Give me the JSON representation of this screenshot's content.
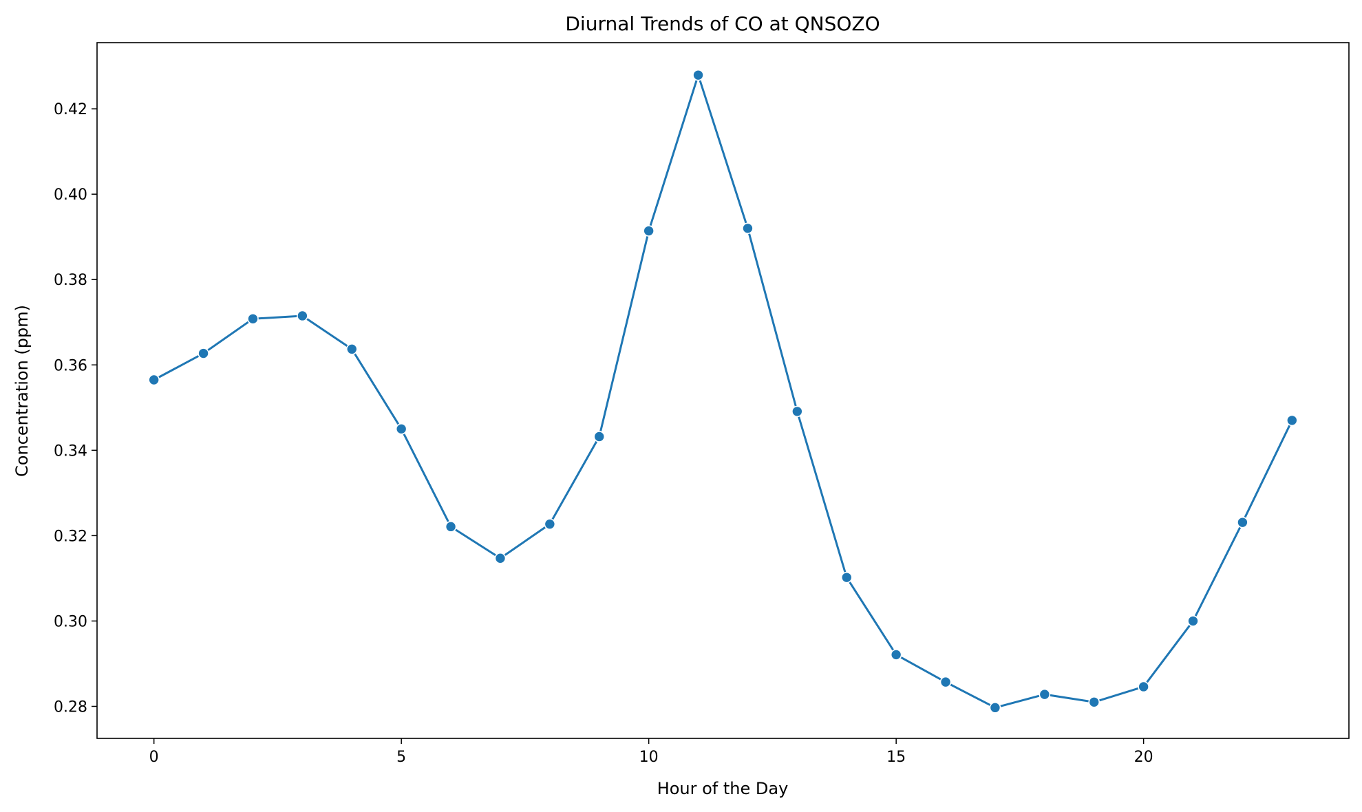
{
  "chart_data": {
    "type": "line",
    "title": "Diurnal Trends of CO at QNSOZO",
    "xlabel": "Hour of the Day",
    "ylabel": "Concentration (ppm)",
    "xlim": [
      -1.15,
      24.15
    ],
    "ylim": [
      0.2725,
      0.4355
    ],
    "xticks": [
      0,
      5,
      10,
      15,
      20
    ],
    "xtick_labels": [
      "0",
      "5",
      "10",
      "15",
      "20"
    ],
    "yticks": [
      0.28,
      0.3,
      0.32,
      0.34,
      0.36,
      0.38,
      0.4,
      0.42
    ],
    "ytick_labels": [
      "0.28",
      "0.30",
      "0.32",
      "0.34",
      "0.36",
      "0.38",
      "0.40",
      "0.42"
    ],
    "grid": false,
    "legend": "none",
    "colors": {
      "line": "#1f77b4",
      "marker_edge": "#ffffff",
      "axes": "#000000"
    },
    "series": [
      {
        "x": [
          0,
          1,
          2,
          3,
          4,
          5,
          6,
          7,
          8,
          9,
          10,
          11,
          12,
          13,
          14,
          15,
          16,
          17,
          18,
          19,
          20,
          21,
          22,
          23
        ],
        "values": [
          0.3565,
          0.3627,
          0.3708,
          0.3715,
          0.3637,
          0.345,
          0.3221,
          0.3147,
          0.3227,
          0.3432,
          0.3914,
          0.4279,
          0.392,
          0.3491,
          0.3102,
          0.2921,
          0.2857,
          0.2797,
          0.2828,
          0.281,
          0.2846,
          0.3,
          0.3231,
          0.347
        ]
      }
    ]
  }
}
